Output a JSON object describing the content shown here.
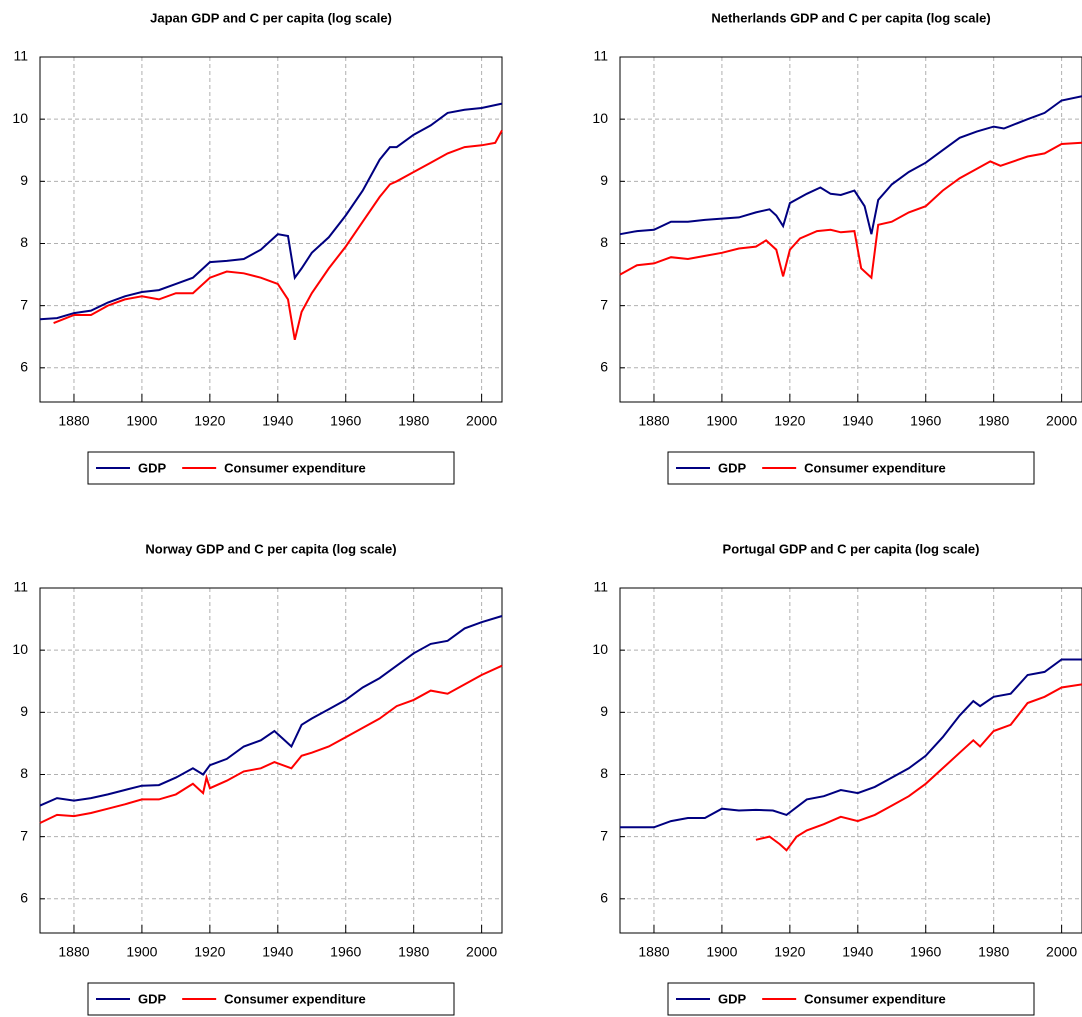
{
  "chart_data": [
    {
      "type": "line",
      "title": "Japan GDP and C per capita (log scale)",
      "xlim": [
        1870,
        2006
      ],
      "ylim": [
        5.45,
        11
      ],
      "xticks": [
        1880,
        1900,
        1920,
        1940,
        1960,
        1980,
        2000
      ],
      "yticks": [
        6,
        7,
        8,
        9,
        10,
        11
      ],
      "grid": true,
      "series": [
        {
          "name": "GDP",
          "color": "#000080",
          "x": [
            1870,
            1875,
            1880,
            1885,
            1890,
            1895,
            1900,
            1905,
            1910,
            1915,
            1920,
            1925,
            1930,
            1935,
            1940,
            1943,
            1945,
            1947,
            1950,
            1955,
            1960,
            1965,
            1970,
            1973,
            1975,
            1980,
            1985,
            1990,
            1995,
            2000,
            2006
          ],
          "values": [
            6.78,
            6.8,
            6.88,
            6.92,
            7.05,
            7.15,
            7.22,
            7.25,
            7.35,
            7.45,
            7.7,
            7.72,
            7.75,
            7.9,
            8.15,
            8.12,
            7.45,
            7.6,
            7.85,
            8.1,
            8.45,
            8.85,
            9.35,
            9.55,
            9.55,
            9.75,
            9.9,
            10.1,
            10.15,
            10.18,
            10.25
          ]
        },
        {
          "name": "Consumer expenditure",
          "color": "#ff0000",
          "x": [
            1874,
            1880,
            1885,
            1890,
            1895,
            1900,
            1905,
            1910,
            1915,
            1920,
            1925,
            1930,
            1935,
            1940,
            1943,
            1945,
            1947,
            1950,
            1955,
            1960,
            1965,
            1970,
            1973,
            1975,
            1980,
            1985,
            1990,
            1995,
            2000,
            2004,
            2006
          ],
          "values": [
            6.72,
            6.85,
            6.85,
            7.0,
            7.1,
            7.15,
            7.1,
            7.2,
            7.2,
            7.45,
            7.55,
            7.52,
            7.45,
            7.35,
            7.1,
            6.45,
            6.9,
            7.2,
            7.6,
            7.95,
            8.35,
            8.75,
            8.95,
            9.0,
            9.15,
            9.3,
            9.45,
            9.55,
            9.58,
            9.62,
            9.82
          ]
        }
      ]
    },
    {
      "type": "line",
      "title": "Netherlands GDP and C per capita (log scale)",
      "xlim": [
        1870,
        2006
      ],
      "ylim": [
        5.45,
        11
      ],
      "xticks": [
        1880,
        1900,
        1920,
        1940,
        1960,
        1980,
        2000
      ],
      "yticks": [
        6,
        7,
        8,
        9,
        10,
        11
      ],
      "grid": true,
      "series": [
        {
          "name": "GDP",
          "color": "#000080",
          "x": [
            1870,
            1875,
            1880,
            1885,
            1890,
            1895,
            1900,
            1905,
            1910,
            1914,
            1916,
            1918,
            1920,
            1925,
            1929,
            1932,
            1935,
            1939,
            1942,
            1944,
            1946,
            1950,
            1955,
            1960,
            1965,
            1970,
            1975,
            1980,
            1983,
            1990,
            1995,
            2000,
            2006
          ],
          "values": [
            8.15,
            8.2,
            8.22,
            8.35,
            8.35,
            8.38,
            8.4,
            8.42,
            8.5,
            8.55,
            8.45,
            8.28,
            8.65,
            8.8,
            8.9,
            8.8,
            8.78,
            8.85,
            8.6,
            8.15,
            8.7,
            8.95,
            9.15,
            9.3,
            9.5,
            9.7,
            9.8,
            9.88,
            9.85,
            10.0,
            10.1,
            10.3,
            10.37
          ]
        },
        {
          "name": "Consumer expenditure",
          "color": "#ff0000",
          "x": [
            1870,
            1875,
            1880,
            1885,
            1890,
            1895,
            1900,
            1905,
            1910,
            1913,
            1916,
            1918,
            1920,
            1923,
            1928,
            1932,
            1935,
            1939,
            1941,
            1944,
            1946,
            1950,
            1955,
            1960,
            1965,
            1970,
            1975,
            1979,
            1982,
            1990,
            1995,
            2000,
            2006
          ],
          "values": [
            7.5,
            7.65,
            7.68,
            7.78,
            7.75,
            7.8,
            7.85,
            7.92,
            7.95,
            8.05,
            7.9,
            7.47,
            7.9,
            8.08,
            8.2,
            8.22,
            8.18,
            8.2,
            7.6,
            7.45,
            8.3,
            8.35,
            8.5,
            8.6,
            8.85,
            9.05,
            9.2,
            9.32,
            9.25,
            9.4,
            9.45,
            9.6,
            9.62
          ]
        }
      ]
    },
    {
      "type": "line",
      "title": "Norway GDP and C per capita (log scale)",
      "xlim": [
        1870,
        2006
      ],
      "ylim": [
        5.45,
        11
      ],
      "xticks": [
        1880,
        1900,
        1920,
        1940,
        1960,
        1980,
        2000
      ],
      "yticks": [
        6,
        7,
        8,
        9,
        10,
        11
      ],
      "grid": true,
      "series": [
        {
          "name": "GDP",
          "color": "#000080",
          "x": [
            1870,
            1875,
            1880,
            1885,
            1890,
            1895,
            1900,
            1905,
            1910,
            1915,
            1918,
            1920,
            1925,
            1930,
            1935,
            1939,
            1942,
            1944,
            1947,
            1950,
            1955,
            1960,
            1965,
            1970,
            1975,
            1980,
            1985,
            1990,
            1995,
            2000,
            2006
          ],
          "values": [
            7.5,
            7.62,
            7.58,
            7.62,
            7.68,
            7.75,
            7.82,
            7.83,
            7.95,
            8.1,
            8.0,
            8.15,
            8.25,
            8.45,
            8.55,
            8.7,
            8.55,
            8.45,
            8.8,
            8.9,
            9.05,
            9.2,
            9.4,
            9.55,
            9.75,
            9.95,
            10.1,
            10.15,
            10.35,
            10.45,
            10.55
          ]
        },
        {
          "name": "Consumer expenditure",
          "color": "#ff0000",
          "x": [
            1870,
            1875,
            1880,
            1885,
            1890,
            1895,
            1900,
            1905,
            1910,
            1915,
            1918,
            1919,
            1920,
            1925,
            1930,
            1935,
            1939,
            1944,
            1947,
            1950,
            1955,
            1960,
            1965,
            1970,
            1975,
            1980,
            1985,
            1990,
            1995,
            2000,
            2006
          ],
          "values": [
            7.22,
            7.35,
            7.33,
            7.38,
            7.45,
            7.52,
            7.6,
            7.6,
            7.68,
            7.85,
            7.7,
            7.95,
            7.78,
            7.9,
            8.05,
            8.1,
            8.2,
            8.1,
            8.3,
            8.35,
            8.45,
            8.6,
            8.75,
            8.9,
            9.1,
            9.2,
            9.35,
            9.3,
            9.45,
            9.6,
            9.75
          ]
        }
      ]
    },
    {
      "type": "line",
      "title": "Portugal GDP and C per capita (log scale)",
      "xlim": [
        1870,
        2006
      ],
      "ylim": [
        5.45,
        11
      ],
      "xticks": [
        1880,
        1900,
        1920,
        1940,
        1960,
        1980,
        2000
      ],
      "yticks": [
        6,
        7,
        8,
        9,
        10,
        11
      ],
      "grid": true,
      "series": [
        {
          "name": "GDP",
          "color": "#000080",
          "x": [
            1870,
            1875,
            1880,
            1885,
            1890,
            1895,
            1900,
            1905,
            1910,
            1915,
            1919,
            1925,
            1930,
            1935,
            1940,
            1945,
            1950,
            1955,
            1960,
            1965,
            1970,
            1974,
            1976,
            1980,
            1985,
            1990,
            1995,
            2000,
            2006
          ],
          "values": [
            7.15,
            7.15,
            7.15,
            7.25,
            7.3,
            7.3,
            7.45,
            7.42,
            7.43,
            7.42,
            7.35,
            7.6,
            7.65,
            7.75,
            7.7,
            7.8,
            7.95,
            8.1,
            8.3,
            8.6,
            8.95,
            9.18,
            9.1,
            9.25,
            9.3,
            9.6,
            9.65,
            9.85,
            9.85
          ]
        },
        {
          "name": "Consumer expenditure",
          "color": "#ff0000",
          "x": [
            1910,
            1914,
            1917,
            1919,
            1922,
            1925,
            1930,
            1935,
            1940,
            1945,
            1950,
            1955,
            1960,
            1965,
            1970,
            1974,
            1976,
            1980,
            1985,
            1990,
            1995,
            2000,
            2006
          ],
          "values": [
            6.95,
            7.0,
            6.88,
            6.78,
            7.0,
            7.1,
            7.2,
            7.32,
            7.25,
            7.35,
            7.5,
            7.65,
            7.85,
            8.1,
            8.35,
            8.55,
            8.45,
            8.7,
            8.8,
            9.15,
            9.25,
            9.4,
            9.45
          ]
        }
      ]
    }
  ]
}
